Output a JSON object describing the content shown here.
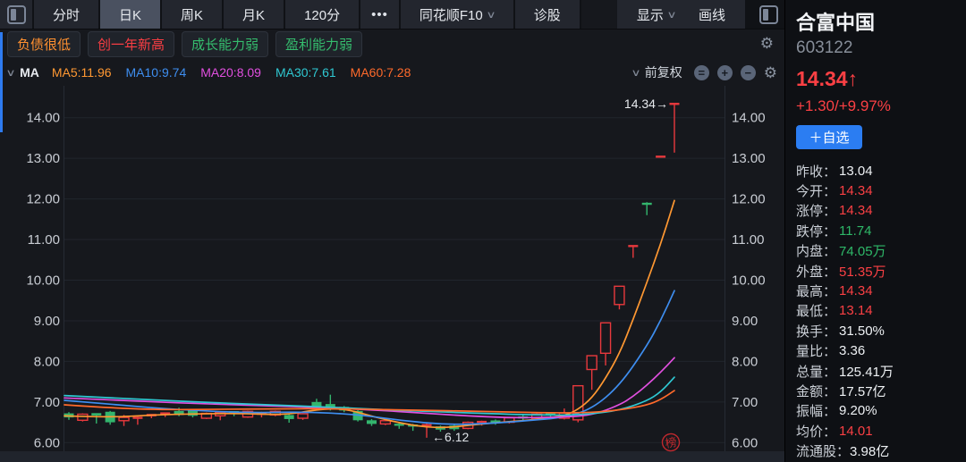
{
  "toolbar": {
    "tabs": [
      {
        "label": "分时",
        "active": false,
        "dropdown": false
      },
      {
        "label": "日K",
        "active": true,
        "dropdown": false
      },
      {
        "label": "周K",
        "active": false,
        "dropdown": false
      },
      {
        "label": "月K",
        "active": false,
        "dropdown": false
      },
      {
        "label": "120分",
        "active": false,
        "dropdown": false
      },
      {
        "label": "•••",
        "active": false,
        "dropdown": false
      },
      {
        "label": "同花顺F10",
        "active": false,
        "dropdown": true
      },
      {
        "label": "诊股",
        "active": false,
        "dropdown": false
      }
    ],
    "display_label": "显示",
    "draw_label": "画线"
  },
  "tags": [
    {
      "label": "负债很低",
      "color": "#ff9030"
    },
    {
      "label": "创一年新高",
      "color": "#fa3e43"
    },
    {
      "label": "成长能力弱",
      "color": "#35bd6e"
    },
    {
      "label": "盈利能力弱",
      "color": "#35bd6e"
    }
  ],
  "ma_bar": {
    "group_label": "MA",
    "items": [
      {
        "label": "MA5:11.96",
        "color": "#ff9832"
      },
      {
        "label": "MA10:9.74",
        "color": "#3e8ef0"
      },
      {
        "label": "MA20:8.09",
        "color": "#e24fe0"
      },
      {
        "label": "MA30:7.61",
        "color": "#2fc8d2"
      },
      {
        "label": "MA60:7.28",
        "color": "#ff6a2b"
      }
    ],
    "adjust_label": "前复权"
  },
  "chart_data": {
    "type": "candlestick",
    "title": "合富中国 603122 日K",
    "y_ticks": [
      "14.00",
      "13.00",
      "12.00",
      "11.00",
      "10.00",
      "9.00",
      "8.00",
      "7.00",
      "6.00"
    ],
    "ylim": [
      5.75,
      14.8
    ],
    "grid": true,
    "up_color": "#e8393d",
    "down_color": "#33b56d",
    "candles": [
      [
        6.72,
        6.75,
        6.56,
        6.62
      ],
      [
        6.55,
        6.72,
        6.52,
        6.7
      ],
      [
        6.7,
        6.72,
        6.47,
        6.64
      ],
      [
        6.76,
        6.78,
        6.44,
        6.5
      ],
      [
        6.54,
        6.68,
        6.41,
        6.62
      ],
      [
        6.58,
        6.64,
        6.44,
        6.61
      ],
      [
        6.62,
        6.7,
        6.6,
        6.68
      ],
      [
        6.66,
        6.74,
        6.63,
        6.72
      ],
      [
        6.78,
        6.86,
        6.65,
        6.68
      ],
      [
        6.8,
        6.83,
        6.62,
        6.66
      ],
      [
        6.6,
        6.74,
        6.58,
        6.72
      ],
      [
        6.66,
        6.76,
        6.55,
        6.74
      ],
      [
        6.75,
        6.77,
        6.65,
        6.69
      ],
      [
        6.63,
        6.79,
        6.61,
        6.77
      ],
      [
        6.68,
        6.76,
        6.62,
        6.71
      ],
      [
        6.68,
        6.79,
        6.65,
        6.77
      ],
      [
        6.68,
        6.7,
        6.49,
        6.58
      ],
      [
        6.6,
        6.73,
        6.56,
        6.71
      ],
      [
        7.0,
        7.08,
        6.84,
        6.88
      ],
      [
        6.95,
        7.18,
        6.79,
        6.83
      ],
      [
        6.88,
        6.9,
        6.75,
        6.79
      ],
      [
        6.78,
        6.8,
        6.52,
        6.55
      ],
      [
        6.55,
        6.58,
        6.41,
        6.46
      ],
      [
        6.46,
        6.56,
        6.43,
        6.54
      ],
      [
        6.44,
        6.5,
        6.34,
        6.41
      ],
      [
        6.42,
        6.46,
        6.29,
        6.38
      ],
      [
        6.38,
        6.47,
        6.12,
        6.43
      ],
      [
        6.4,
        6.42,
        6.27,
        6.32
      ],
      [
        6.42,
        6.44,
        6.29,
        6.33
      ],
      [
        6.35,
        6.52,
        6.33,
        6.5
      ],
      [
        6.46,
        6.54,
        6.42,
        6.51
      ],
      [
        6.52,
        6.57,
        6.44,
        6.48
      ],
      [
        6.5,
        6.63,
        6.47,
        6.61
      ],
      [
        6.62,
        6.68,
        6.54,
        6.58
      ],
      [
        6.58,
        6.72,
        6.55,
        6.7
      ],
      [
        6.7,
        6.75,
        6.6,
        6.66
      ],
      [
        6.6,
        6.84,
        6.57,
        6.73
      ],
      [
        6.56,
        7.4,
        6.5,
        7.4
      ],
      [
        7.8,
        8.14,
        7.3,
        8.14
      ],
      [
        8.2,
        8.95,
        7.9,
        8.95
      ],
      [
        9.4,
        9.85,
        9.28,
        9.85
      ],
      [
        10.8,
        10.84,
        10.55,
        10.84
      ],
      [
        11.88,
        11.92,
        11.6,
        11.86
      ],
      [
        13.04,
        13.04,
        13.04,
        13.04
      ],
      [
        14.34,
        14.34,
        13.14,
        14.34
      ]
    ],
    "ma_series": [
      {
        "name": "MA5",
        "value": 11.96,
        "color": "#ff9832",
        "points": [
          [
            72,
            6.66
          ],
          [
            120,
            6.62
          ],
          [
            170,
            6.68
          ],
          [
            220,
            6.71
          ],
          [
            270,
            6.72
          ],
          [
            320,
            6.68
          ],
          [
            355,
            6.82
          ],
          [
            385,
            6.84
          ],
          [
            420,
            6.62
          ],
          [
            455,
            6.45
          ],
          [
            477,
            6.38
          ],
          [
            500,
            6.37
          ],
          [
            530,
            6.44
          ],
          [
            560,
            6.5
          ],
          [
            590,
            6.55
          ],
          [
            616,
            6.62
          ],
          [
            631,
            6.66
          ],
          [
            646,
            6.81
          ],
          [
            662,
            7.1
          ],
          [
            677,
            7.58
          ],
          [
            693,
            8.21
          ],
          [
            708,
            9.04
          ],
          [
            723,
            9.93
          ],
          [
            739,
            10.91
          ],
          [
            754,
            11.96
          ]
        ]
      },
      {
        "name": "MA10",
        "value": 9.74,
        "color": "#3e8ef0",
        "points": [
          [
            72,
            7.04
          ],
          [
            130,
            6.93
          ],
          [
            200,
            6.81
          ],
          [
            280,
            6.73
          ],
          [
            340,
            6.76
          ],
          [
            400,
            6.69
          ],
          [
            450,
            6.54
          ],
          [
            500,
            6.44
          ],
          [
            550,
            6.47
          ],
          [
            600,
            6.56
          ],
          [
            631,
            6.62
          ],
          [
            662,
            6.83
          ],
          [
            693,
            7.41
          ],
          [
            723,
            8.37
          ],
          [
            739,
            9.02
          ],
          [
            754,
            9.74
          ]
        ]
      },
      {
        "name": "MA20",
        "value": 8.09,
        "color": "#e24fe0",
        "points": [
          [
            72,
            7.1
          ],
          [
            150,
            7.02
          ],
          [
            250,
            6.94
          ],
          [
            350,
            6.87
          ],
          [
            420,
            6.8
          ],
          [
            470,
            6.73
          ],
          [
            520,
            6.66
          ],
          [
            570,
            6.61
          ],
          [
            620,
            6.62
          ],
          [
            662,
            6.67
          ],
          [
            693,
            6.93
          ],
          [
            708,
            7.14
          ],
          [
            723,
            7.41
          ],
          [
            739,
            7.74
          ],
          [
            754,
            8.09
          ]
        ]
      },
      {
        "name": "MA30",
        "value": 7.61,
        "color": "#2fc8d2",
        "points": [
          [
            72,
            7.16
          ],
          [
            150,
            7.07
          ],
          [
            250,
            6.97
          ],
          [
            350,
            6.89
          ],
          [
            450,
            6.79
          ],
          [
            550,
            6.71
          ],
          [
            620,
            6.67
          ],
          [
            660,
            6.7
          ],
          [
            693,
            6.8
          ],
          [
            723,
            7.02
          ],
          [
            739,
            7.25
          ],
          [
            754,
            7.61
          ]
        ]
      },
      {
        "name": "MA60",
        "value": 7.28,
        "color": "#ff6a2b",
        "points": [
          [
            72,
            6.93
          ],
          [
            150,
            6.81
          ],
          [
            250,
            6.82
          ],
          [
            350,
            6.84
          ],
          [
            450,
            6.81
          ],
          [
            550,
            6.76
          ],
          [
            620,
            6.73
          ],
          [
            660,
            6.74
          ],
          [
            693,
            6.8
          ],
          [
            723,
            6.92
          ],
          [
            739,
            7.06
          ],
          [
            754,
            7.28
          ]
        ]
      }
    ],
    "annotations": {
      "high_label": "14.34→",
      "low_label": "←6.12",
      "low_candle_index": 26,
      "badge": "榜"
    }
  },
  "quote_panel": {
    "name": "合富中国",
    "code": "603122",
    "price": "14.34↑",
    "change": "+1.30/+9.97%",
    "watchlist_button": "＋自选",
    "stats": [
      {
        "label": "昨收：",
        "value": "13.04",
        "color": "white"
      },
      {
        "label": "今开：",
        "value": "14.34",
        "color": "up"
      },
      {
        "label": "涨停：",
        "value": "14.34",
        "color": "up"
      },
      {
        "label": "跌停：",
        "value": "11.74",
        "color": "down"
      },
      {
        "label": "内盘：",
        "value": "74.05万",
        "color": "down"
      },
      {
        "label": "外盘：",
        "value": "51.35万",
        "color": "up"
      },
      {
        "label": "最高：",
        "value": "14.34",
        "color": "up"
      },
      {
        "label": "最低：",
        "value": "13.14",
        "color": "up"
      },
      {
        "label": "换手：",
        "value": "31.50%",
        "color": "white"
      },
      {
        "label": "量比：",
        "value": "3.36",
        "color": "white"
      },
      {
        "label": "总量：",
        "value": "125.41万",
        "color": "white"
      },
      {
        "label": "金额：",
        "value": "17.57亿",
        "color": "white"
      },
      {
        "label": "振幅：",
        "value": "9.20%",
        "color": "white"
      },
      {
        "label": "均价：",
        "value": "14.01",
        "color": "up"
      },
      {
        "label": "流通股：",
        "value": "3.98亿",
        "color": "white"
      }
    ]
  }
}
